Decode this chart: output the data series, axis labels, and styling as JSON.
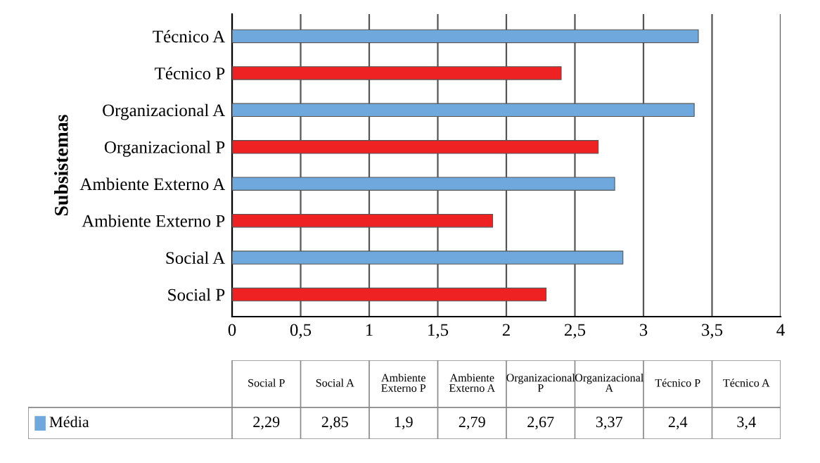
{
  "chart_data": {
    "type": "bar",
    "orientation": "horizontal",
    "ylabel": "Subsistemas",
    "categories": [
      "Técnico A",
      "Técnico P",
      "Organizacional A",
      "Organizacional P",
      "Ambiente Externo A",
      "Ambiente Externo P",
      "Social A",
      "Social P"
    ],
    "series": [
      {
        "name": "Média",
        "color": "#6fa8dc",
        "colors": [
          "#6fa8dc",
          "#ee2222",
          "#6fa8dc",
          "#ee2222",
          "#6fa8dc",
          "#ee2222",
          "#6fa8dc",
          "#ee2222"
        ],
        "values": [
          3.4,
          2.4,
          3.37,
          2.67,
          2.79,
          1.9,
          2.85,
          2.29
        ]
      }
    ],
    "value_labels": [
      "3,4",
      "2,4",
      "3,37",
      "2,67",
      "2,79",
      "1,9",
      "2,85",
      "2,29"
    ],
    "xlim": [
      0,
      4
    ],
    "xticks": [
      0,
      {
        "value": 0.5,
        "label": "0,5"
      },
      1,
      {
        "value": 1.5,
        "label": "1,5"
      },
      2,
      {
        "value": 2.5,
        "label": "2,5"
      },
      3,
      {
        "value": 3.5,
        "label": "3,5"
      },
      4
    ],
    "grid": "x"
  }
}
